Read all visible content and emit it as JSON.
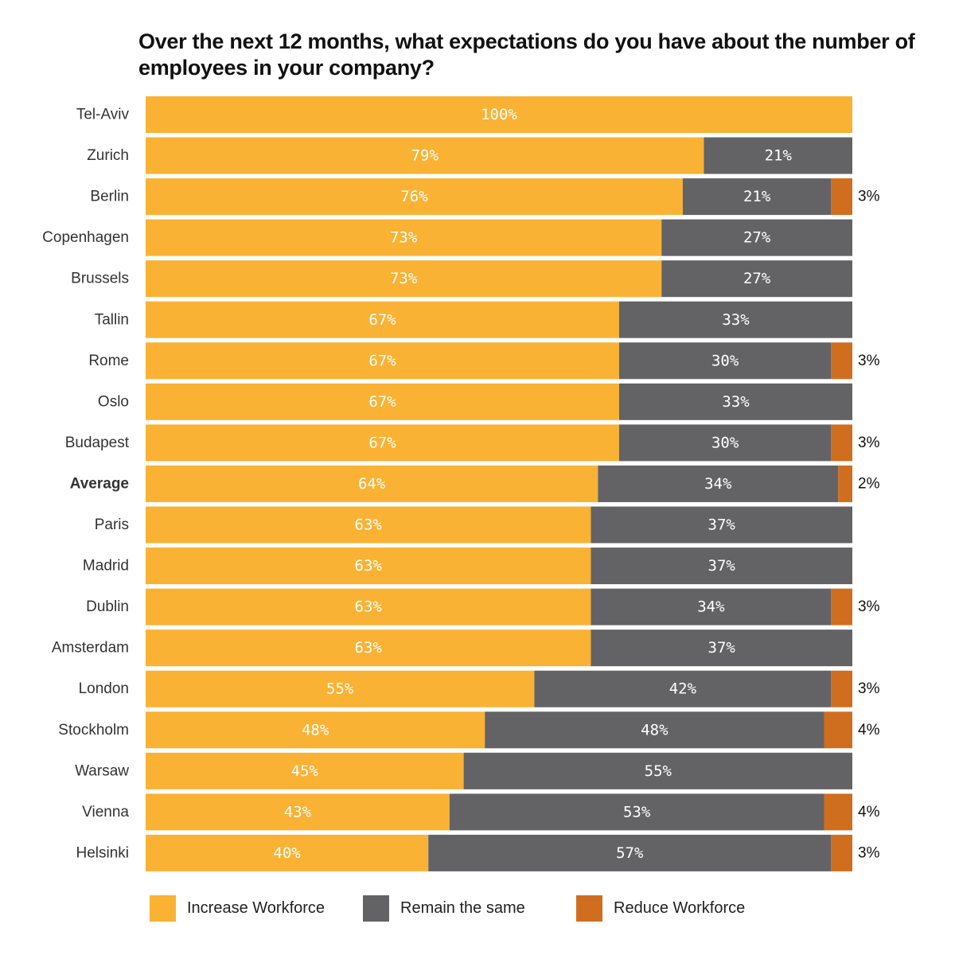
{
  "chart_data": {
    "type": "bar",
    "orientation": "horizontal",
    "stacked": true,
    "title": "Over the next 12 months, what expectations do you have about the number of employees in your company?",
    "categories": [
      "Tel-Aviv",
      "Zurich",
      "Berlin",
      "Copenhagen",
      "Brussels",
      "Tallin",
      "Rome",
      "Oslo",
      "Budapest",
      "Average",
      "Paris",
      "Madrid",
      "Dublin",
      "Amsterdam",
      "London",
      "Stockholm",
      "Warsaw",
      "Vienna",
      "Helsinki"
    ],
    "highlighted_category": "Average",
    "series": [
      {
        "name": "Increase Workforce",
        "color": "#F9B233",
        "values": [
          100,
          79,
          76,
          73,
          73,
          67,
          67,
          67,
          67,
          64,
          63,
          63,
          63,
          63,
          55,
          48,
          45,
          43,
          40
        ]
      },
      {
        "name": "Remain the same",
        "color": "#636366",
        "values": [
          0,
          21,
          21,
          27,
          27,
          33,
          30,
          33,
          30,
          34,
          37,
          37,
          34,
          37,
          42,
          48,
          55,
          53,
          57
        ]
      },
      {
        "name": "Reduce Workforce",
        "color": "#D06E1F",
        "values": [
          0,
          0,
          3,
          0,
          0,
          0,
          3,
          0,
          3,
          2,
          0,
          0,
          3,
          0,
          3,
          4,
          0,
          4,
          3
        ]
      }
    ],
    "value_suffix": "%",
    "xlim": [
      0,
      100
    ],
    "grid": false,
    "legend_position": "bottom"
  }
}
